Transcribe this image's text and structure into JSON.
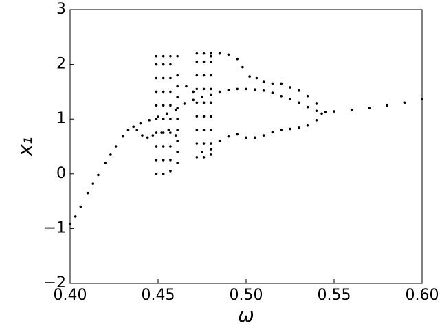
{
  "chart_data": {
    "type": "scatter",
    "xlabel": "ω",
    "ylabel": "x₁",
    "xlim": [
      0.4,
      0.6
    ],
    "ylim": [
      -2,
      3
    ],
    "xticks": [
      {
        "value": 0.4,
        "label": "0.40"
      },
      {
        "value": 0.45,
        "label": "0.45"
      },
      {
        "value": 0.5,
        "label": "0.50"
      },
      {
        "value": 0.55,
        "label": "0.55"
      },
      {
        "value": 0.6,
        "label": "0.60"
      }
    ],
    "yticks": [
      {
        "value": -2,
        "label": "−2"
      },
      {
        "value": -1,
        "label": "−1"
      },
      0,
      1,
      2,
      3
    ],
    "series": [
      {
        "color": "#000000",
        "x": [
          0.4,
          0.403,
          0.406,
          0.41,
          0.413,
          0.416,
          0.42,
          0.423,
          0.426,
          0.43,
          0.433,
          0.436,
          0.44,
          0.445,
          0.45,
          0.455,
          0.46,
          0.465,
          0.47,
          0.475,
          0.48,
          0.485,
          0.49,
          0.495,
          0.5,
          0.505,
          0.51,
          0.515,
          0.52,
          0.525,
          0.53,
          0.535,
          0.54,
          0.545,
          0.55,
          0.56,
          0.57,
          0.58,
          0.59,
          0.6
        ],
        "values": [
          -0.92,
          -0.78,
          -0.6,
          -0.35,
          -0.18,
          -0.02,
          0.2,
          0.35,
          0.5,
          0.68,
          0.8,
          0.86,
          0.92,
          0.98,
          1.04,
          1.1,
          1.17,
          1.28,
          1.35,
          1.4,
          1.45,
          1.5,
          1.53,
          1.55,
          1.55,
          1.54,
          1.52,
          1.48,
          1.42,
          1.37,
          1.3,
          1.22,
          1.15,
          1.13,
          1.14,
          1.17,
          1.2,
          1.25,
          1.3,
          1.37
        ]
      },
      {
        "color": "#000000",
        "x": [
          0.438,
          0.441,
          0.444,
          0.447,
          0.452,
          0.456,
          0.46,
          0.466,
          0.47,
          0.475,
          0.48,
          0.485,
          0.49,
          0.495,
          0.5,
          0.505,
          0.51,
          0.515,
          0.52,
          0.525,
          0.53,
          0.535,
          0.54,
          0.543
        ],
        "values": [
          0.8,
          0.7,
          0.66,
          0.7,
          0.75,
          0.8,
          0.7,
          1.6,
          1.5,
          0.4,
          0.45,
          0.6,
          0.68,
          0.72,
          0.66,
          0.66,
          0.7,
          0.76,
          0.8,
          0.82,
          0.84,
          0.88,
          0.98,
          1.1
        ]
      },
      {
        "color": "#000000",
        "x": [
          0.48,
          0.485,
          0.49,
          0.495,
          0.498,
          0.502,
          0.506,
          0.51,
          0.515,
          0.52,
          0.525,
          0.53,
          0.535,
          0.54
        ],
        "values": [
          2.15,
          2.2,
          2.18,
          2.1,
          1.95,
          1.78,
          1.75,
          1.68,
          1.65,
          1.65,
          1.58,
          1.52,
          1.42,
          1.28
        ]
      },
      {
        "color": "#000000",
        "x": [
          0.449,
          0.449,
          0.449,
          0.449,
          0.449,
          0.449,
          0.449,
          0.449,
          0.449,
          0.449,
          0.453,
          0.453,
          0.453,
          0.453,
          0.453,
          0.453,
          0.453,
          0.453,
          0.453,
          0.453,
          0.457,
          0.457,
          0.457,
          0.457,
          0.457,
          0.457,
          0.457,
          0.457,
          0.457,
          0.457,
          0.461,
          0.461,
          0.461,
          0.461,
          0.461,
          0.461,
          0.461,
          0.461,
          0.461,
          0.461
        ],
        "values": [
          0.0,
          0.25,
          0.5,
          0.75,
          1.0,
          1.25,
          1.5,
          1.75,
          2.0,
          2.15,
          0.0,
          0.25,
          0.5,
          0.75,
          1.0,
          1.25,
          1.5,
          1.75,
          2.0,
          2.15,
          0.05,
          0.25,
          0.5,
          0.75,
          1.0,
          1.25,
          1.5,
          1.75,
          2.0,
          2.15,
          0.2,
          0.4,
          0.6,
          0.8,
          1.0,
          1.2,
          1.4,
          1.6,
          1.8,
          2.15
        ]
      },
      {
        "color": "#000000",
        "x": [
          0.472,
          0.472,
          0.472,
          0.472,
          0.472,
          0.472,
          0.472,
          0.472,
          0.472,
          0.476,
          0.476,
          0.476,
          0.476,
          0.476,
          0.476,
          0.476,
          0.476,
          0.476,
          0.48,
          0.48,
          0.48,
          0.48,
          0.48,
          0.48,
          0.48,
          0.48,
          0.48
        ],
        "values": [
          0.3,
          0.55,
          0.8,
          1.05,
          1.3,
          1.55,
          1.8,
          2.05,
          2.2,
          0.3,
          0.55,
          0.8,
          1.05,
          1.3,
          1.55,
          1.8,
          2.05,
          2.2,
          0.35,
          0.55,
          0.8,
          1.05,
          1.3,
          1.55,
          1.8,
          2.05,
          2.2
        ]
      }
    ]
  }
}
